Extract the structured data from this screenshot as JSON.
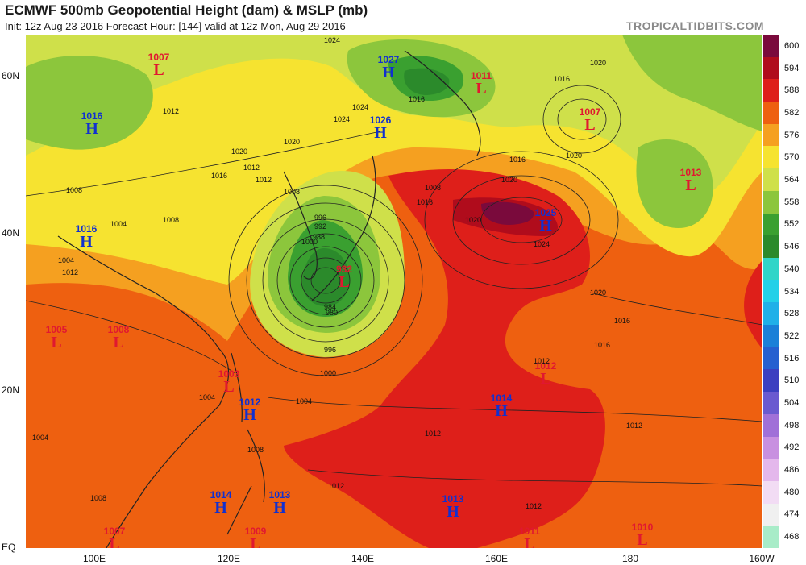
{
  "header": {
    "title": "ECMWF 500mb Geopotential Height (dam) & MSLP (mb)",
    "subtitle": "Init: 12z Aug 23 2016   Forecast Hour: [144]   valid at 12z Mon, Aug 29 2016",
    "brand": "TROPICALTIDBITS.COM"
  },
  "axes": {
    "lat_labels": [
      "60N",
      "40N",
      "20N",
      "EQ"
    ],
    "lon_labels": [
      "100E",
      "120E",
      "140E",
      "160E",
      "180",
      "160W"
    ]
  },
  "colorbar": {
    "levels": [
      "600",
      "594",
      "588",
      "582",
      "576",
      "570",
      "564",
      "558",
      "552",
      "546",
      "540",
      "534",
      "528",
      "522",
      "516",
      "510",
      "504",
      "498",
      "492",
      "486",
      "480",
      "474",
      "468"
    ],
    "colors": [
      "#7a0a3c",
      "#b00c1c",
      "#de1f1a",
      "#ee6010",
      "#f5a020",
      "#f6e330",
      "#cfe04a",
      "#8cc63c",
      "#3aa030",
      "#2b8a2b",
      "#30d5c8",
      "#22d0e8",
      "#20b0e8",
      "#1a80d8",
      "#2560d0",
      "#3b3fc0",
      "#6a5ad0",
      "#a070d8",
      "#c890e0",
      "#e4b8ec",
      "#f2dcf4",
      "#f0f0f0",
      "#a8ecc8"
    ]
  },
  "pressure_systems": [
    {
      "type": "L",
      "value": "1007"
    },
    {
      "type": "H",
      "value": "1027"
    },
    {
      "type": "L",
      "value": "1011"
    },
    {
      "type": "H",
      "value": "1016"
    },
    {
      "type": "H",
      "value": "1026"
    },
    {
      "type": "L",
      "value": "1007"
    },
    {
      "type": "L",
      "value": "1013"
    },
    {
      "type": "H",
      "value": "1025"
    },
    {
      "type": "H",
      "value": "1016"
    },
    {
      "type": "L",
      "value": "932"
    },
    {
      "type": "L",
      "value": "1005"
    },
    {
      "type": "L",
      "value": "1008"
    },
    {
      "type": "L",
      "value": "1003"
    },
    {
      "type": "L",
      "value": "1012"
    },
    {
      "type": "H",
      "value": "1014"
    },
    {
      "type": "H",
      "value": "1012"
    },
    {
      "type": "H",
      "value": "1014"
    },
    {
      "type": "H",
      "value": "1013"
    },
    {
      "type": "H",
      "value": "1013"
    },
    {
      "type": "L",
      "value": "1007"
    },
    {
      "type": "L",
      "value": "1009"
    },
    {
      "type": "L",
      "value": "1011"
    },
    {
      "type": "L",
      "value": "1010"
    }
  ],
  "contour_labels": [
    "1024",
    "1020",
    "1016",
    "1024",
    "1016",
    "1020",
    "1024",
    "1012",
    "1020",
    "1016",
    "1012",
    "1008",
    "1008",
    "1004",
    "1008",
    "1004",
    "1012",
    "1012",
    "1008",
    "1000",
    "996",
    "992",
    "988",
    "984",
    "980",
    "996",
    "1000",
    "1004",
    "1004",
    "1008",
    "1004",
    "1008",
    "1012",
    "1016",
    "1020",
    "1020",
    "1024",
    "1020",
    "1016",
    "1012",
    "1012",
    "1012",
    "1016",
    "1020",
    "1016",
    "1012"
  ]
}
